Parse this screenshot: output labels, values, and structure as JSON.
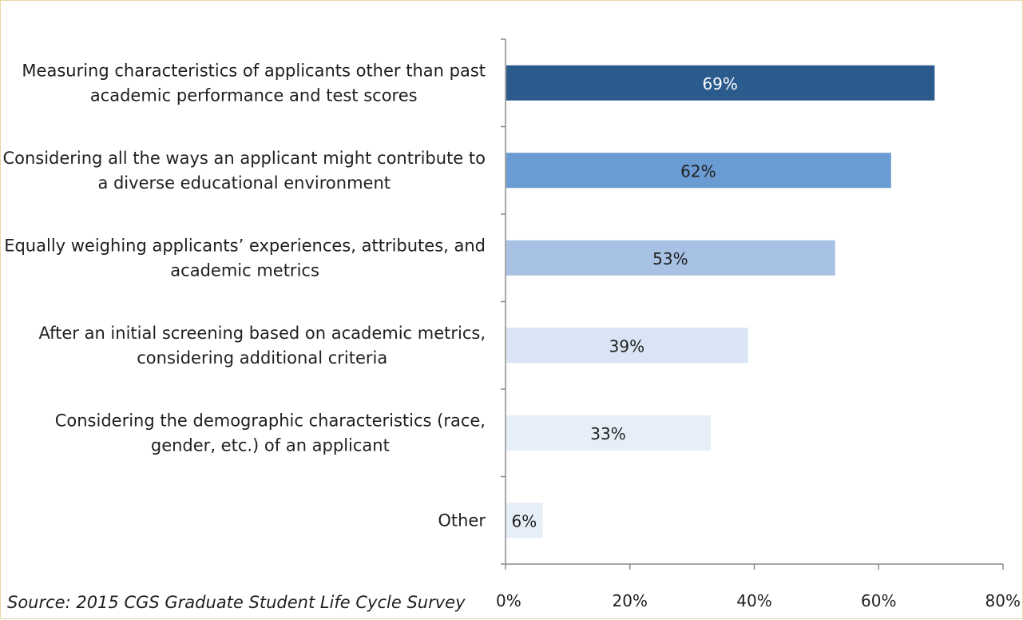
{
  "chart_data": {
    "type": "bar",
    "orientation": "horizontal",
    "categories": [
      [
        "Measuring characteristics of applicants other than past",
        "academic performance and test scores"
      ],
      [
        "Considering all the ways an applicant might contribute to",
        "a diverse educational environment"
      ],
      [
        "Equally weighing applicants’ experiences, attributes, and",
        "academic metrics"
      ],
      [
        "After an initial screening based on academic metrics,",
        "considering additional criteria"
      ],
      [
        "Considering the demographic characteristics (race,",
        "gender, etc.) of an applicant"
      ],
      [
        "Other"
      ]
    ],
    "values": [
      69,
      62,
      53,
      39,
      33,
      6
    ],
    "data_labels": [
      "69%",
      "62%",
      "53%",
      "39%",
      "33%",
      "6%"
    ],
    "bar_colors": [
      "#2b5a8d",
      "#6a9bd2",
      "#a7c2e4",
      "#d9e5f4",
      "#e6eef8",
      "#e6eef8"
    ],
    "label_colors": [
      "#ffffff",
      "#1f1f1f",
      "#1f1f1f",
      "#1f1f1f",
      "#1f1f1f",
      "#1f1f1f"
    ],
    "xlim": [
      0,
      80
    ],
    "x_ticks": [
      0,
      20,
      40,
      60,
      80
    ],
    "x_tick_labels": [
      "0%",
      "20%",
      "40%",
      "60%",
      "80%"
    ],
    "grid": false,
    "legend": "none"
  },
  "source": "Source: 2015 CGS Graduate Student Life Cycle Survey"
}
